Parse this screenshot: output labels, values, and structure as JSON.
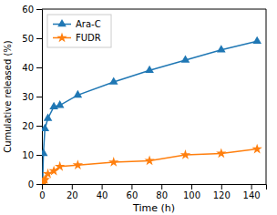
{
  "chart_data": {
    "type": "line",
    "xlabel": "Time (h)",
    "ylabel": "Cumulative released (%)",
    "x": [
      0,
      0.5,
      1,
      2,
      4,
      8,
      12,
      24,
      48,
      72,
      96,
      120,
      144
    ],
    "series": [
      {
        "name": "Ara-C",
        "marker": "triangle",
        "values": [
          0,
          0.3,
          10.5,
          19.0,
          22.5,
          26.5,
          27.0,
          30.5,
          35.0,
          39.0,
          42.5,
          46.0,
          49.0
        ]
      },
      {
        "name": "FUDR",
        "marker": "star",
        "values": [
          0,
          0.2,
          1.0,
          1.5,
          3.5,
          4.5,
          6.0,
          6.5,
          7.5,
          8.0,
          10.0,
          10.5,
          12.0
        ]
      }
    ],
    "xlim": [
      0,
      150
    ],
    "ylim": [
      0,
      60
    ],
    "xticks": [
      0,
      20,
      40,
      60,
      80,
      100,
      120,
      140
    ],
    "yticks": [
      0,
      10,
      20,
      30,
      40,
      50,
      60
    ],
    "legend": "upper left"
  }
}
